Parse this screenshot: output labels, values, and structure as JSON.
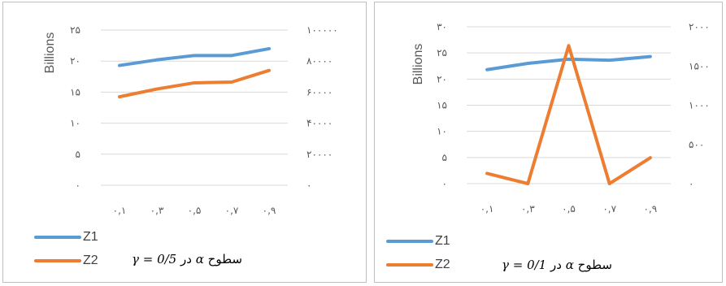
{
  "chart_data": [
    {
      "type": "line",
      "ylabel": "Billions",
      "categories": [
        "٠,١",
        "٠,٣",
        "٠,۵",
        "٠,٧",
        "٠,٩"
      ],
      "y_left_ticks": [
        "٠",
        "۵",
        "١٠",
        "١۵",
        "٢٠",
        "٢۵"
      ],
      "y_right_ticks": [
        "٠",
        "٢٠٠٠٠",
        "۴٠٠٠٠",
        "۶٠٠٠٠",
        "٨٠٠٠٠",
        "١٠٠٠٠٠"
      ],
      "ylim_left": [
        0,
        25
      ],
      "ylim_right": [
        0,
        100000
      ],
      "grid": true,
      "legend_position": "bottom-left",
      "series": [
        {
          "name": "Z1",
          "axis": "left",
          "color": "#5b9bd5",
          "values": [
            19.3,
            20.2,
            20.9,
            20.9,
            22.0
          ]
        },
        {
          "name": "Z2",
          "axis": "right",
          "color": "#ed7d31",
          "values": [
            57000,
            62000,
            66000,
            66500,
            74000
          ]
        }
      ],
      "caption": {
        "prefix": "سطوح",
        "alpha": "α",
        "mid": "در",
        "gamma_eq": "γ = 0/5"
      }
    },
    {
      "type": "line",
      "ylabel": "Billions",
      "categories": [
        "٠,١",
        "٠,٣",
        "٠,۵",
        "٠,٧",
        "٠,٩"
      ],
      "y_left_ticks": [
        "٠",
        "۵",
        "١٠",
        "١۵",
        "٢٠",
        "٢۵",
        "٣٠"
      ],
      "y_right_ticks": [
        "٠",
        "۵٠٠",
        "١٠٠٠",
        "١۵٠٠",
        "٢٠٠٠"
      ],
      "ylim_left": [
        0,
        30
      ],
      "ylim_right": [
        0,
        2000
      ],
      "grid": true,
      "legend_position": "bottom-left",
      "series": [
        {
          "name": "Z1",
          "axis": "left",
          "color": "#5b9bd5",
          "values": [
            21.8,
            23.0,
            23.8,
            23.6,
            24.3
          ]
        },
        {
          "name": "Z2",
          "axis": "right",
          "color": "#ed7d31",
          "values": [
            130,
            0,
            1760,
            0,
            330
          ]
        }
      ],
      "caption": {
        "prefix": "سطوح",
        "alpha": "α",
        "mid": "در",
        "gamma_eq": "γ = 0/1"
      }
    }
  ]
}
